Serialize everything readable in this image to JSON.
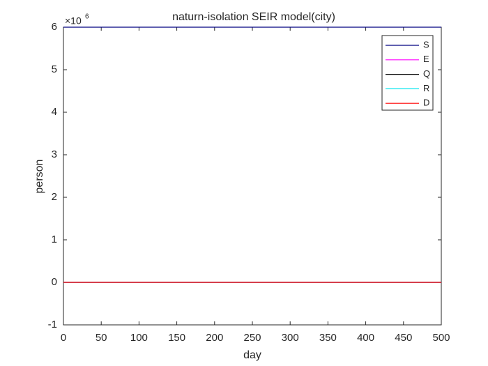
{
  "chart_data": {
    "type": "line",
    "title": "naturn-isolation SEIR model(city)",
    "x_label": "day",
    "y_label": "person",
    "y_scale_base": "×10",
    "y_scale_exponent": "6",
    "x": [
      0,
      100,
      200,
      300,
      400,
      500
    ],
    "series": [
      {
        "name": "S",
        "color": "#000080",
        "values": [
          6,
          6,
          6,
          6,
          6,
          6
        ]
      },
      {
        "name": "E",
        "color": "#ff00ff",
        "values": [
          0,
          0,
          0,
          0,
          0,
          0
        ]
      },
      {
        "name": "Q",
        "color": "#000000",
        "values": [
          0,
          0,
          0,
          0,
          0,
          0
        ]
      },
      {
        "name": "R",
        "color": "#00e5ee",
        "values": [
          0,
          0,
          0,
          0,
          0,
          0
        ]
      },
      {
        "name": "D",
        "color": "#ff0000",
        "values": [
          0,
          0,
          0,
          0,
          0,
          0
        ]
      }
    ],
    "xlim": [
      0,
      500
    ],
    "xticks": [
      0,
      50,
      100,
      150,
      200,
      250,
      300,
      350,
      400,
      450,
      500
    ],
    "ylim": [
      -1,
      6
    ],
    "yticks": [
      -1,
      0,
      1,
      2,
      3,
      4,
      5,
      6
    ],
    "grid": false,
    "legend": "northeast"
  }
}
